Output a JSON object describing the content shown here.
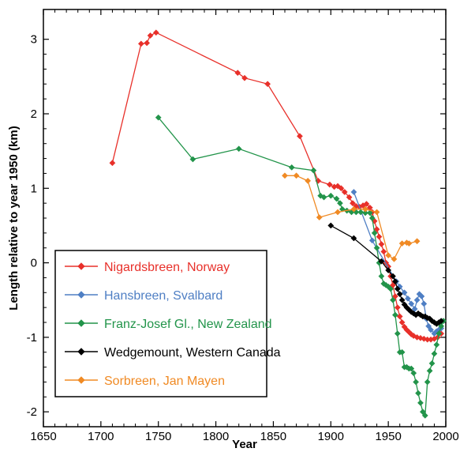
{
  "chart_data": {
    "type": "line",
    "title": "",
    "xlabel": "Year",
    "ylabel": "Length relative to year 1950 (km)",
    "xlim": [
      1650,
      2000
    ],
    "ylim": [
      -2.2,
      3.4
    ],
    "xticks": [
      1650,
      1700,
      1750,
      1800,
      1850,
      1900,
      1950,
      2000
    ],
    "yticks": [
      -2,
      -1,
      0,
      1,
      2,
      3
    ],
    "xtick_labels": [
      "1650",
      "1700",
      "1750",
      "1800",
      "1850",
      "1900",
      "1950",
      "2000"
    ],
    "ytick_labels": [
      "-2",
      "-1",
      "0",
      "1",
      "2",
      "3"
    ],
    "grid": false,
    "legend_position": "lower-left",
    "series": [
      {
        "name": "Nigardsbreen, Norway",
        "color": "#e8302a",
        "points": [
          [
            1710,
            1.34
          ],
          [
            1735,
            2.94
          ],
          [
            1740,
            2.95
          ],
          [
            1743,
            3.05
          ],
          [
            1748,
            3.09
          ],
          [
            1819,
            2.55
          ],
          [
            1825,
            2.48
          ],
          [
            1845,
            2.4
          ],
          [
            1873,
            1.7
          ],
          [
            1889,
            1.1
          ],
          [
            1899,
            1.05
          ],
          [
            1903,
            1.02
          ],
          [
            1906,
            1.03
          ],
          [
            1909,
            1.0
          ],
          [
            1912,
            0.95
          ],
          [
            1916,
            0.88
          ],
          [
            1919,
            0.8
          ],
          [
            1922,
            0.76
          ],
          [
            1925,
            0.75
          ],
          [
            1928,
            0.77
          ],
          [
            1931,
            0.79
          ],
          [
            1934,
            0.74
          ],
          [
            1936,
            0.68
          ],
          [
            1938,
            0.56
          ],
          [
            1940,
            0.45
          ],
          [
            1942,
            0.35
          ],
          [
            1944,
            0.25
          ],
          [
            1946,
            0.15
          ],
          [
            1948,
            0.0
          ],
          [
            1950,
            -0.05
          ],
          [
            1952,
            -0.18
          ],
          [
            1954,
            -0.3
          ],
          [
            1956,
            -0.45
          ],
          [
            1958,
            -0.6
          ],
          [
            1960,
            -0.72
          ],
          [
            1962,
            -0.8
          ],
          [
            1964,
            -0.86
          ],
          [
            1966,
            -0.9
          ],
          [
            1968,
            -0.93
          ],
          [
            1970,
            -0.96
          ],
          [
            1972,
            -0.98
          ],
          [
            1975,
            -1.0
          ],
          [
            1978,
            -1.01
          ],
          [
            1981,
            -1.02
          ],
          [
            1984,
            -1.03
          ],
          [
            1987,
            -1.03
          ],
          [
            1990,
            -1.02
          ],
          [
            1993,
            -1.0
          ],
          [
            1996,
            -0.95
          ]
        ]
      },
      {
        "name": "Hansbreen, Svalbard",
        "color": "#4f7fc4",
        "points": [
          [
            1920,
            0.95
          ],
          [
            1936,
            0.3
          ],
          [
            1957,
            -0.25
          ],
          [
            1960,
            -0.32
          ],
          [
            1964,
            -0.4
          ],
          [
            1967,
            -0.48
          ],
          [
            1970,
            -0.55
          ],
          [
            1973,
            -0.62
          ],
          [
            1975,
            -0.5
          ],
          [
            1977,
            -0.42
          ],
          [
            1979,
            -0.45
          ],
          [
            1981,
            -0.55
          ],
          [
            1983,
            -0.75
          ],
          [
            1985,
            -0.85
          ],
          [
            1987,
            -0.9
          ],
          [
            1990,
            -0.95
          ],
          [
            1992,
            -0.92
          ],
          [
            1994,
            -0.9
          ],
          [
            1996,
            -0.88
          ]
        ]
      },
      {
        "name": "Franz-Josef Gl., New Zealand",
        "color": "#22944a",
        "points": [
          [
            1750,
            1.95
          ],
          [
            1780,
            1.39
          ],
          [
            1820,
            1.53
          ],
          [
            1866,
            1.28
          ],
          [
            1885,
            1.24
          ],
          [
            1891,
            0.9
          ],
          [
            1894,
            0.88
          ],
          [
            1900,
            0.9
          ],
          [
            1905,
            0.86
          ],
          [
            1908,
            0.8
          ],
          [
            1910,
            0.72
          ],
          [
            1914,
            0.7
          ],
          [
            1918,
            0.68
          ],
          [
            1922,
            0.68
          ],
          [
            1926,
            0.68
          ],
          [
            1930,
            0.67
          ],
          [
            1934,
            0.67
          ],
          [
            1936,
            0.6
          ],
          [
            1938,
            0.4
          ],
          [
            1940,
            0.2
          ],
          [
            1942,
            0.0
          ],
          [
            1944,
            -0.18
          ],
          [
            1946,
            -0.28
          ],
          [
            1948,
            -0.3
          ],
          [
            1950,
            -0.32
          ],
          [
            1952,
            -0.35
          ],
          [
            1954,
            -0.5
          ],
          [
            1956,
            -0.7
          ],
          [
            1958,
            -0.95
          ],
          [
            1960,
            -1.2
          ],
          [
            1962,
            -1.2
          ],
          [
            1964,
            -1.4
          ],
          [
            1966,
            -1.4
          ],
          [
            1968,
            -1.42
          ],
          [
            1970,
            -1.42
          ],
          [
            1972,
            -1.48
          ],
          [
            1974,
            -1.6
          ],
          [
            1976,
            -1.75
          ],
          [
            1978,
            -1.88
          ],
          [
            1980,
            -2.0
          ],
          [
            1982,
            -2.05
          ],
          [
            1984,
            -1.6
          ],
          [
            1986,
            -1.45
          ],
          [
            1988,
            -1.35
          ],
          [
            1990,
            -1.22
          ],
          [
            1992,
            -1.1
          ],
          [
            1994,
            -0.95
          ],
          [
            1996,
            -0.85
          ],
          [
            1998,
            -0.78
          ]
        ]
      },
      {
        "name": "Wedgemount, Western Canada",
        "color": "#000000",
        "points": [
          [
            1900,
            0.5
          ],
          [
            1920,
            0.33
          ],
          [
            1944,
            0.02
          ],
          [
            1950,
            -0.1
          ],
          [
            1954,
            -0.18
          ],
          [
            1956,
            -0.25
          ],
          [
            1958,
            -0.35
          ],
          [
            1960,
            -0.42
          ],
          [
            1962,
            -0.5
          ],
          [
            1964,
            -0.56
          ],
          [
            1966,
            -0.6
          ],
          [
            1968,
            -0.63
          ],
          [
            1970,
            -0.66
          ],
          [
            1972,
            -0.68
          ],
          [
            1974,
            -0.7
          ],
          [
            1976,
            -0.68
          ],
          [
            1978,
            -0.7
          ],
          [
            1980,
            -0.72
          ],
          [
            1982,
            -0.72
          ],
          [
            1984,
            -0.74
          ],
          [
            1986,
            -0.75
          ],
          [
            1988,
            -0.78
          ],
          [
            1990,
            -0.8
          ],
          [
            1992,
            -0.82
          ],
          [
            1994,
            -0.8
          ],
          [
            1996,
            -0.78
          ]
        ]
      },
      {
        "name": "Sorbreen, Jan Mayen",
        "color": "#f08a24",
        "points": [
          [
            1860,
            1.17
          ],
          [
            1870,
            1.17
          ],
          [
            1880,
            1.1
          ],
          [
            1890,
            0.61
          ],
          [
            1906,
            0.68
          ],
          [
            1920,
            0.72
          ],
          [
            1930,
            0.72
          ],
          [
            1940,
            0.68
          ],
          [
            1950,
            0.1
          ],
          [
            1955,
            0.05
          ],
          [
            1962,
            0.26
          ],
          [
            1966,
            0.27
          ],
          [
            1968,
            0.26
          ],
          [
            1975,
            0.29
          ]
        ]
      }
    ]
  }
}
